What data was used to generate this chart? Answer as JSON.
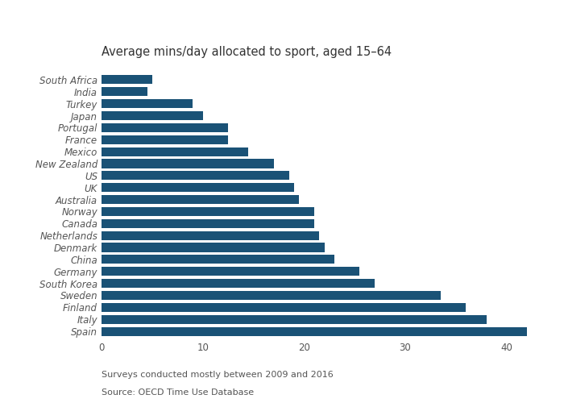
{
  "title": "Average mins/day allocated to sport, aged 15–64",
  "footnote1": "Surveys conducted mostly between 2009 and 2016",
  "footnote2": "Source: OECD Time Use Database",
  "categories": [
    "South Africa",
    "India",
    "Turkey",
    "Japan",
    "Portugal",
    "France",
    "Mexico",
    "New Zealand",
    "US",
    "UK",
    "Australia",
    "Norway",
    "Canada",
    "Netherlands",
    "Denmark",
    "China",
    "Germany",
    "South Korea",
    "Sweden",
    "Finland",
    "Italy",
    "Spain"
  ],
  "values": [
    5.0,
    4.5,
    9.0,
    10.0,
    12.5,
    12.5,
    14.5,
    17.0,
    18.5,
    19.0,
    19.5,
    21.0,
    21.0,
    21.5,
    22.0,
    23.0,
    25.5,
    27.0,
    33.5,
    36.0,
    38.0,
    42.0
  ],
  "bar_color": "#1a5276",
  "xlim": [
    0,
    44
  ],
  "xticks": [
    0,
    10,
    20,
    30,
    40
  ],
  "grid_color": "#ffffff",
  "bg_color": "#ffffff",
  "bar_height": 0.75,
  "title_fontsize": 10.5,
  "tick_fontsize": 8.5,
  "footnote_fontsize": 8.0
}
